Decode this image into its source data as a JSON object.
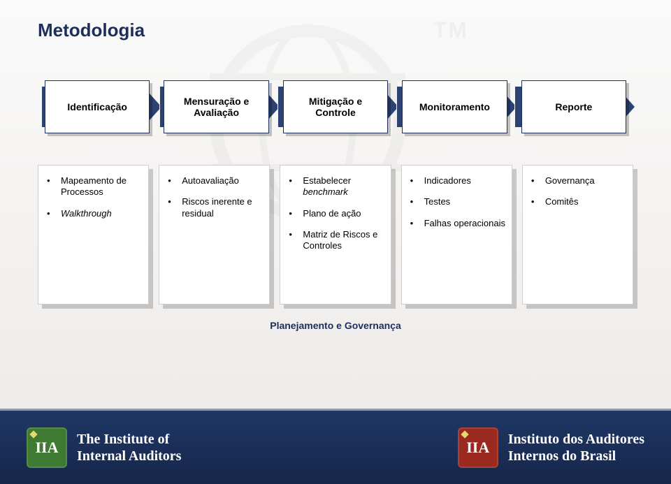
{
  "title": {
    "text": "Metodologia",
    "fontsize_pt": 26,
    "color": "#1c2f5a",
    "weight": "bold"
  },
  "background": {
    "gradient_top": "#fafafa",
    "gradient_bottom": "#eceae8"
  },
  "watermark": {
    "tm_text": "TM",
    "color": "#8a8a8a",
    "opacity": 0.08
  },
  "process": {
    "type": "flowchart",
    "chevron_color": "#2c4270",
    "box_bg": "#ffffff",
    "box_border": "#1c2f5a",
    "box_shadow": "rgba(0,0,0,0.22)",
    "label_color": "#000000",
    "label_fontsize_pt": 14,
    "steps": [
      {
        "label": "Identificação"
      },
      {
        "label": "Mensuração e Avaliação"
      },
      {
        "label": "Mitigação e Controle"
      },
      {
        "label": "Monitoramento"
      },
      {
        "label": "Reporte"
      }
    ]
  },
  "columns": {
    "card_bg": "#ffffff",
    "card_border": "#d0cdca",
    "card_shadow": "rgba(0,0,0,0.18)",
    "bullet_color": "#000000",
    "text_color": "#000000",
    "fontsize_pt": 13,
    "cards": [
      {
        "items": [
          {
            "text": "Mapeamento de Processos"
          },
          {
            "text": "Walkthrough",
            "italic": true
          }
        ]
      },
      {
        "items": [
          {
            "text": "Autoavaliação"
          },
          {
            "text": "Riscos inerente e residual"
          }
        ]
      },
      {
        "items": [
          {
            "text_html": "Estabelecer <em>benchmark</em>"
          },
          {
            "text": "Plano de ação"
          },
          {
            "text": "Matriz de Riscos e Controles"
          }
        ]
      },
      {
        "items": [
          {
            "text": "Indicadores"
          },
          {
            "text": "Testes"
          },
          {
            "text": "Falhas operacionais"
          }
        ]
      },
      {
        "items": [
          {
            "text": "Governança"
          },
          {
            "text": "Comitês"
          }
        ]
      }
    ]
  },
  "caption": {
    "text": "Planejamento e Governança",
    "fontsize_pt": 14,
    "color": "#1c2f5a",
    "weight": "bold"
  },
  "footer": {
    "bg_gradient_top": "#1f3766",
    "bg_gradient_bottom": "#16264a",
    "border_top_color": "#8b9ab6",
    "left": {
      "badge_text": "IIA",
      "badge_color": "#3f7a33",
      "line1": "The Institute of",
      "line2": "Internal Auditors"
    },
    "right": {
      "badge_text": "IIA",
      "badge_color": "#9a2a20",
      "line1": "Instituto dos Auditores",
      "line2": "Internos do Brasil"
    },
    "text_color": "#ffffff",
    "font_family": "Georgia, serif",
    "fontsize_pt": 15
  }
}
